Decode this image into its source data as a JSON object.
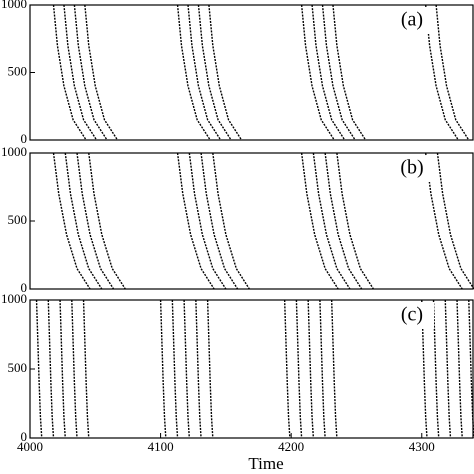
{
  "chart_data": [
    {
      "type": "line",
      "label": "(a)",
      "xlim": [
        4000,
        4340
      ],
      "ylim": [
        0,
        1000
      ],
      "yticks": [
        0,
        500,
        1000
      ],
      "color": "#000000",
      "series": [
        {
          "x": [
            4018,
            4021,
            4026,
            4033,
            4043
          ],
          "values": [
            1000,
            700,
            400,
            150,
            0
          ]
        },
        {
          "x": [
            4026,
            4029,
            4034,
            4041,
            4051
          ],
          "values": [
            1000,
            700,
            400,
            150,
            0
          ]
        },
        {
          "x": [
            4034,
            4037,
            4042,
            4049,
            4059
          ],
          "values": [
            1000,
            700,
            400,
            150,
            0
          ]
        },
        {
          "x": [
            4042,
            4045,
            4050,
            4057,
            4067
          ],
          "values": [
            1000,
            700,
            400,
            150,
            0
          ]
        },
        {
          "x": [
            4113,
            4116,
            4121,
            4128,
            4138
          ],
          "values": [
            1000,
            700,
            400,
            150,
            0
          ]
        },
        {
          "x": [
            4121,
            4124,
            4129,
            4136,
            4146
          ],
          "values": [
            1000,
            700,
            400,
            150,
            0
          ]
        },
        {
          "x": [
            4129,
            4132,
            4137,
            4144,
            4154
          ],
          "values": [
            1000,
            700,
            400,
            150,
            0
          ]
        },
        {
          "x": [
            4137,
            4140,
            4145,
            4152,
            4162
          ],
          "values": [
            1000,
            700,
            400,
            150,
            0
          ]
        },
        {
          "x": [
            4208,
            4211,
            4216,
            4223,
            4233
          ],
          "values": [
            1000,
            700,
            400,
            150,
            0
          ]
        },
        {
          "x": [
            4216,
            4219,
            4224,
            4231,
            4241
          ],
          "values": [
            1000,
            700,
            400,
            150,
            0
          ]
        },
        {
          "x": [
            4224,
            4227,
            4232,
            4239,
            4249
          ],
          "values": [
            1000,
            700,
            400,
            150,
            0
          ]
        },
        {
          "x": [
            4232,
            4235,
            4240,
            4247,
            4257
          ],
          "values": [
            1000,
            700,
            400,
            150,
            0
          ]
        },
        {
          "x": [
            4303,
            4306,
            4311,
            4318,
            4328
          ],
          "values": [
            1000,
            700,
            400,
            150,
            0
          ]
        },
        {
          "x": [
            4311,
            4314,
            4319,
            4326,
            4336
          ],
          "values": [
            1000,
            700,
            400,
            150,
            0
          ]
        }
      ]
    },
    {
      "type": "line",
      "label": "(b)",
      "xlim": [
        4000,
        4340
      ],
      "ylim": [
        0,
        1000
      ],
      "yticks": [
        0,
        500,
        1000
      ],
      "color": "#000000",
      "series": [
        {
          "x": [
            4018,
            4022,
            4028,
            4036,
            4046
          ],
          "values": [
            1000,
            700,
            400,
            150,
            0
          ]
        },
        {
          "x": [
            4027,
            4031,
            4037,
            4045,
            4055
          ],
          "values": [
            1000,
            700,
            400,
            150,
            0
          ]
        },
        {
          "x": [
            4036,
            4040,
            4046,
            4054,
            4064
          ],
          "values": [
            1000,
            700,
            400,
            150,
            0
          ]
        },
        {
          "x": [
            4045,
            4049,
            4055,
            4063,
            4073
          ],
          "values": [
            1000,
            700,
            400,
            150,
            0
          ]
        },
        {
          "x": [
            4113,
            4117,
            4123,
            4131,
            4141
          ],
          "values": [
            1000,
            700,
            400,
            150,
            0
          ]
        },
        {
          "x": [
            4122,
            4126,
            4132,
            4140,
            4150
          ],
          "values": [
            1000,
            700,
            400,
            150,
            0
          ]
        },
        {
          "x": [
            4131,
            4135,
            4141,
            4149,
            4159
          ],
          "values": [
            1000,
            700,
            400,
            150,
            0
          ]
        },
        {
          "x": [
            4140,
            4144,
            4150,
            4158,
            4168
          ],
          "values": [
            1000,
            700,
            400,
            150,
            0
          ]
        },
        {
          "x": [
            4208,
            4212,
            4218,
            4226,
            4236
          ],
          "values": [
            1000,
            700,
            400,
            150,
            0
          ]
        },
        {
          "x": [
            4217,
            4221,
            4227,
            4235,
            4245
          ],
          "values": [
            1000,
            700,
            400,
            150,
            0
          ]
        },
        {
          "x": [
            4226,
            4230,
            4236,
            4244,
            4254
          ],
          "values": [
            1000,
            700,
            400,
            150,
            0
          ]
        },
        {
          "x": [
            4235,
            4239,
            4245,
            4253,
            4263
          ],
          "values": [
            1000,
            700,
            400,
            150,
            0
          ]
        },
        {
          "x": [
            4303,
            4307,
            4313,
            4321,
            4331
          ],
          "values": [
            1000,
            700,
            400,
            150,
            0
          ]
        },
        {
          "x": [
            4312,
            4316,
            4322,
            4330,
            4340
          ],
          "values": [
            1000,
            700,
            400,
            150,
            0
          ]
        }
      ]
    },
    {
      "type": "line",
      "label": "(c)",
      "x_label": "Time",
      "xlim": [
        4000,
        4340
      ],
      "ylim": [
        0,
        1000
      ],
      "yticks": [
        0,
        500,
        1000
      ],
      "xticks": [
        4000,
        4100,
        4200,
        4300
      ],
      "color": "#000000",
      "series": [
        {
          "x": [
            4005,
            4006,
            4007,
            4008,
            4009
          ],
          "values": [
            1000,
            700,
            400,
            150,
            0
          ]
        },
        {
          "x": [
            4014,
            4015,
            4016,
            4017,
            4018
          ],
          "values": [
            1000,
            700,
            400,
            150,
            0
          ]
        },
        {
          "x": [
            4023,
            4024,
            4025,
            4026,
            4027
          ],
          "values": [
            1000,
            700,
            400,
            150,
            0
          ]
        },
        {
          "x": [
            4032,
            4033,
            4034,
            4035,
            4036
          ],
          "values": [
            1000,
            700,
            400,
            150,
            0
          ]
        },
        {
          "x": [
            4041,
            4042,
            4043,
            4044,
            4045
          ],
          "values": [
            1000,
            700,
            400,
            150,
            0
          ]
        },
        {
          "x": [
            4100,
            4101,
            4102,
            4103,
            4104
          ],
          "values": [
            1000,
            700,
            400,
            150,
            0
          ]
        },
        {
          "x": [
            4109,
            4110,
            4111,
            4112,
            4113
          ],
          "values": [
            1000,
            700,
            400,
            150,
            0
          ]
        },
        {
          "x": [
            4118,
            4119,
            4120,
            4121,
            4122
          ],
          "values": [
            1000,
            700,
            400,
            150,
            0
          ]
        },
        {
          "x": [
            4127,
            4128,
            4129,
            4130,
            4131
          ],
          "values": [
            1000,
            700,
            400,
            150,
            0
          ]
        },
        {
          "x": [
            4136,
            4137,
            4138,
            4139,
            4140
          ],
          "values": [
            1000,
            700,
            400,
            150,
            0
          ]
        },
        {
          "x": [
            4195,
            4196,
            4197,
            4198,
            4199
          ],
          "values": [
            1000,
            700,
            400,
            150,
            0
          ]
        },
        {
          "x": [
            4204,
            4205,
            4206,
            4207,
            4208
          ],
          "values": [
            1000,
            700,
            400,
            150,
            0
          ]
        },
        {
          "x": [
            4213,
            4214,
            4215,
            4216,
            4217
          ],
          "values": [
            1000,
            700,
            400,
            150,
            0
          ]
        },
        {
          "x": [
            4222,
            4223,
            4224,
            4225,
            4226
          ],
          "values": [
            1000,
            700,
            400,
            150,
            0
          ]
        },
        {
          "x": [
            4231,
            4232,
            4233,
            4234,
            4235
          ],
          "values": [
            1000,
            700,
            400,
            150,
            0
          ]
        },
        {
          "x": [
            4300,
            4301,
            4302,
            4303,
            4304
          ],
          "values": [
            1000,
            700,
            400,
            150,
            0
          ]
        },
        {
          "x": [
            4309,
            4310,
            4311,
            4312,
            4313
          ],
          "values": [
            1000,
            700,
            400,
            150,
            0
          ]
        },
        {
          "x": [
            4318,
            4319,
            4320,
            4321,
            4322
          ],
          "values": [
            1000,
            700,
            400,
            150,
            0
          ]
        },
        {
          "x": [
            4327,
            4328,
            4329,
            4330,
            4331
          ],
          "values": [
            1000,
            700,
            400,
            150,
            0
          ]
        },
        {
          "x": [
            4336,
            4337,
            4338,
            4339,
            4340
          ],
          "values": [
            1000,
            700,
            400,
            150,
            0
          ]
        }
      ]
    }
  ]
}
